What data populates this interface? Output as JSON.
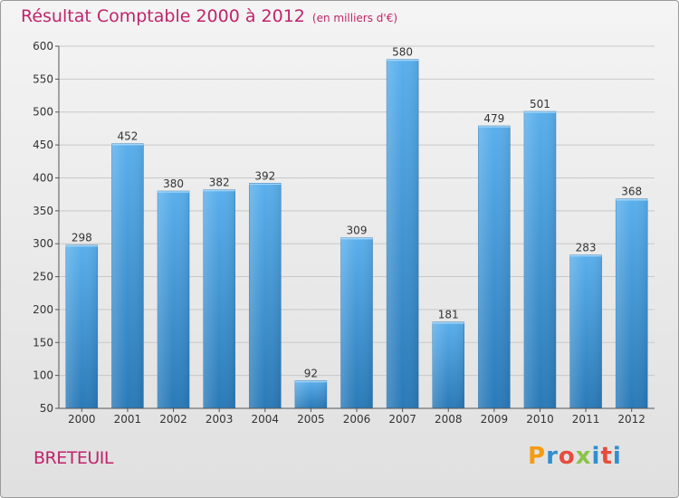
{
  "title": "Résultat Comptable 2000 à 2012",
  "subtitle": "(en milliers d'€)",
  "commune": "BRETEUIL",
  "logo": {
    "letters": [
      "P",
      "r",
      "o",
      "x",
      "i",
      "t",
      "i"
    ],
    "colors": [
      "#f39c12",
      "#2f8fd0",
      "#e74c3c",
      "#8bc34a",
      "#2f8fd0",
      "#e74c3c",
      "#2f8fd0"
    ]
  },
  "colors": {
    "title": "#c0246c",
    "bar_top": "#5aafec",
    "bar_bottom": "#2a7ab8"
  },
  "chart_data": {
    "type": "bar",
    "title": "Résultat Comptable 2000 à 2012",
    "subtitle": "(en milliers d'€)",
    "categories": [
      "2000",
      "2001",
      "2002",
      "2003",
      "2004",
      "2005",
      "2006",
      "2007",
      "2008",
      "2009",
      "2010",
      "2011",
      "2012"
    ],
    "values": [
      298,
      452,
      380,
      382,
      392,
      92,
      309,
      580,
      181,
      479,
      501,
      283,
      368
    ],
    "yticks": [
      "50",
      "100",
      "150",
      "200",
      "250",
      "300",
      "350",
      "400",
      "450",
      "500",
      "550",
      "600"
    ],
    "ylim": [
      50,
      600
    ],
    "grid": true
  }
}
